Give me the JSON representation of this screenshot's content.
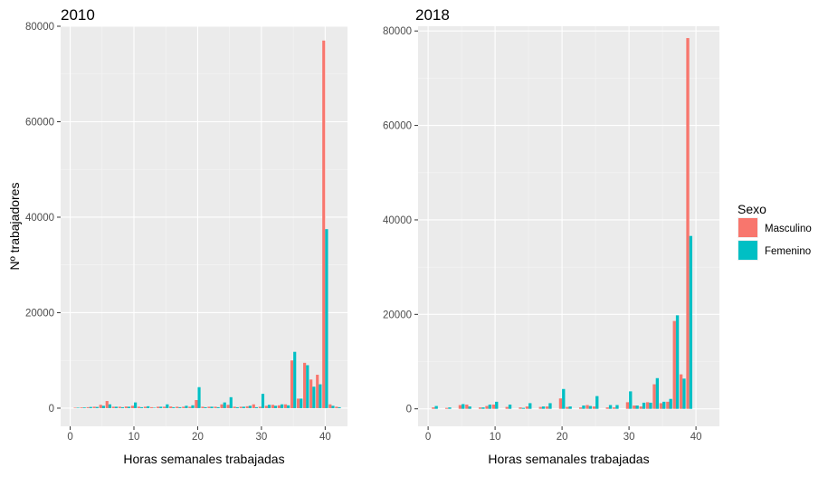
{
  "chart_data": {
    "type": "bar",
    "shared_ylabel": "Nº trabajadores",
    "legend": {
      "title": "Sexo",
      "placement": "right",
      "entries": [
        {
          "name": "Masculino",
          "color": "#F8766D"
        },
        {
          "name": "Femenino",
          "color": "#00BFC4"
        }
      ]
    },
    "panels": [
      {
        "title": "2010",
        "xlabel": "Horas semanales trabajadas",
        "xlim": [
          -1.5,
          43.5
        ],
        "ylim": [
          -3800,
          80000
        ],
        "xticks": [
          0,
          10,
          20,
          30,
          40
        ],
        "yticks": [
          0,
          20000,
          40000,
          60000,
          80000
        ],
        "x": [
          1,
          2,
          3,
          4,
          5,
          6,
          7,
          8,
          9,
          10,
          11,
          12,
          13,
          14,
          15,
          16,
          17,
          18,
          19,
          20,
          21,
          22,
          23,
          24,
          25,
          26,
          27,
          28,
          29,
          30,
          31,
          32,
          33,
          34,
          35,
          36,
          37,
          38,
          39,
          40,
          41,
          42
        ],
        "series": [
          {
            "name": "Masculino",
            "color": "#F8766D",
            "values": [
              100,
              150,
              200,
              300,
              700,
              1500,
              300,
              300,
              350,
              500,
              300,
              300,
              200,
              300,
              300,
              350,
              300,
              300,
              300,
              1700,
              300,
              300,
              300,
              800,
              700,
              300,
              300,
              400,
              800,
              300,
              500,
              700,
              600,
              800,
              10000,
              2000,
              9500,
              6000,
              7000,
              77000,
              800,
              300
            ]
          },
          {
            "name": "Femenino",
            "color": "#00BFC4",
            "values": [
              100,
              150,
              250,
              250,
              500,
              800,
              300,
              200,
              300,
              1200,
              200,
              400,
              100,
              300,
              800,
              200,
              200,
              500,
              600,
              4400,
              200,
              300,
              200,
              1200,
              2300,
              200,
              300,
              500,
              200,
              3000,
              700,
              500,
              800,
              600,
              11800,
              2000,
              9000,
              4500,
              5000,
              37500,
              500,
              200
            ]
          }
        ]
      },
      {
        "title": "2018",
        "xlabel": "Horas semanales trabajadas",
        "xlim": [
          -1.5,
          43.5
        ],
        "ylim": [
          -3700,
          81000
        ],
        "xticks": [
          0,
          10,
          20,
          30,
          40
        ],
        "yticks": [
          0,
          20000,
          40000,
          60000,
          80000
        ],
        "x": [
          1,
          3,
          5,
          6,
          8,
          9,
          10,
          12,
          14,
          15,
          17,
          18,
          20,
          21,
          23,
          24,
          25,
          27,
          28,
          30,
          31,
          32,
          33,
          34,
          35,
          36,
          37,
          38,
          39,
          40,
          41
        ],
        "series": [
          {
            "name": "Masculino",
            "color": "#F8766D",
            "values": [
              300,
              200,
              800,
              900,
              300,
              600,
              900,
              400,
              300,
              500,
              400,
              500,
              2200,
              400,
              300,
              800,
              500,
              300,
              300,
              1400,
              700,
              500,
              1400,
              5200,
              1200,
              1500,
              18600,
              7300,
              78500,
              0,
              0
            ]
          },
          {
            "name": "Femenino",
            "color": "#00BFC4",
            "values": [
              600,
              300,
              1000,
              500,
              300,
              900,
              1500,
              900,
              200,
              1200,
              500,
              1200,
              4200,
              500,
              700,
              600,
              2700,
              800,
              800,
              3700,
              700,
              1300,
              1300,
              6500,
              1500,
              2100,
              19800,
              6400,
              36600,
              0,
              0
            ]
          }
        ]
      }
    ]
  }
}
